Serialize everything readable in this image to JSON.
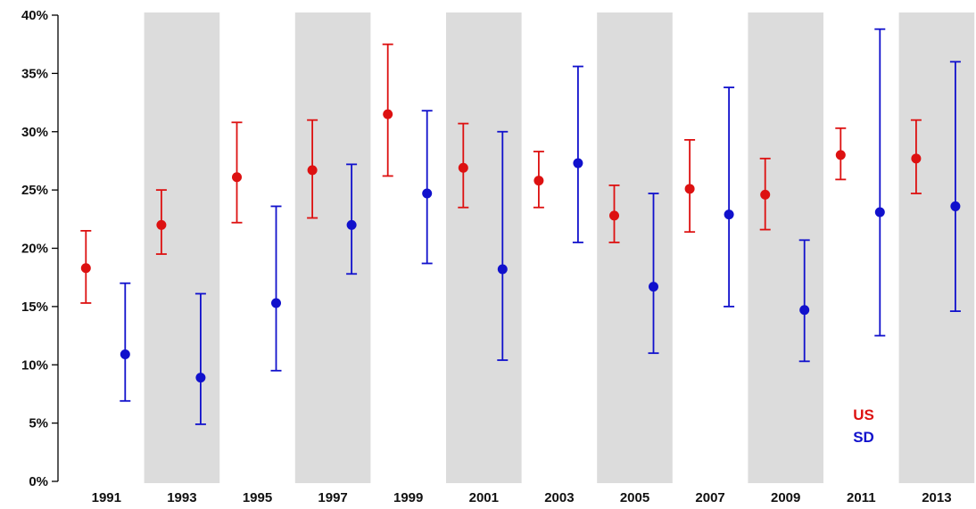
{
  "chart_data": {
    "type": "scatter",
    "subtype": "point-with-error-bars",
    "title": "",
    "xlabel": "",
    "ylabel": "",
    "categories": [
      "1991",
      "1993",
      "1995",
      "1997",
      "1999",
      "2001",
      "2003",
      "2005",
      "2007",
      "2009",
      "2011",
      "2013"
    ],
    "y_ticks": [
      "0%",
      "5%",
      "10%",
      "15%",
      "20%",
      "25%",
      "30%",
      "35%",
      "40%"
    ],
    "ylim": [
      0,
      40
    ],
    "y_unit": "percent",
    "grid": false,
    "background_bands": "alternating gray bands behind 1993, 1997, 2001, 2005, 2009, 2013",
    "band_color": "#dcdcdc",
    "legend": {
      "placement": "bottom-right",
      "entries": [
        "US",
        "SD"
      ]
    },
    "series": [
      {
        "name": "US",
        "color": "#dd1111",
        "values": [
          18.3,
          22.0,
          26.1,
          26.7,
          31.5,
          26.9,
          25.8,
          22.8,
          25.1,
          24.6,
          28.0,
          27.7
        ],
        "lower": [
          15.3,
          19.5,
          22.2,
          22.6,
          26.2,
          23.5,
          23.5,
          20.5,
          21.4,
          21.6,
          25.9,
          24.7
        ],
        "upper": [
          21.5,
          25.0,
          30.8,
          31.0,
          37.5,
          30.7,
          28.3,
          25.4,
          29.3,
          27.7,
          30.3,
          31.0
        ]
      },
      {
        "name": "SD",
        "color": "#1111cc",
        "values": [
          10.9,
          8.9,
          15.3,
          22.0,
          24.7,
          18.2,
          27.3,
          16.7,
          22.9,
          14.7,
          23.1,
          23.6
        ],
        "lower": [
          6.9,
          4.9,
          9.5,
          17.8,
          18.7,
          10.4,
          20.5,
          11.0,
          15.0,
          10.3,
          12.5,
          14.6
        ],
        "upper": [
          17.0,
          16.1,
          23.6,
          27.2,
          31.8,
          30.0,
          35.6,
          24.7,
          33.8,
          20.7,
          38.8,
          36.0
        ]
      }
    ]
  }
}
